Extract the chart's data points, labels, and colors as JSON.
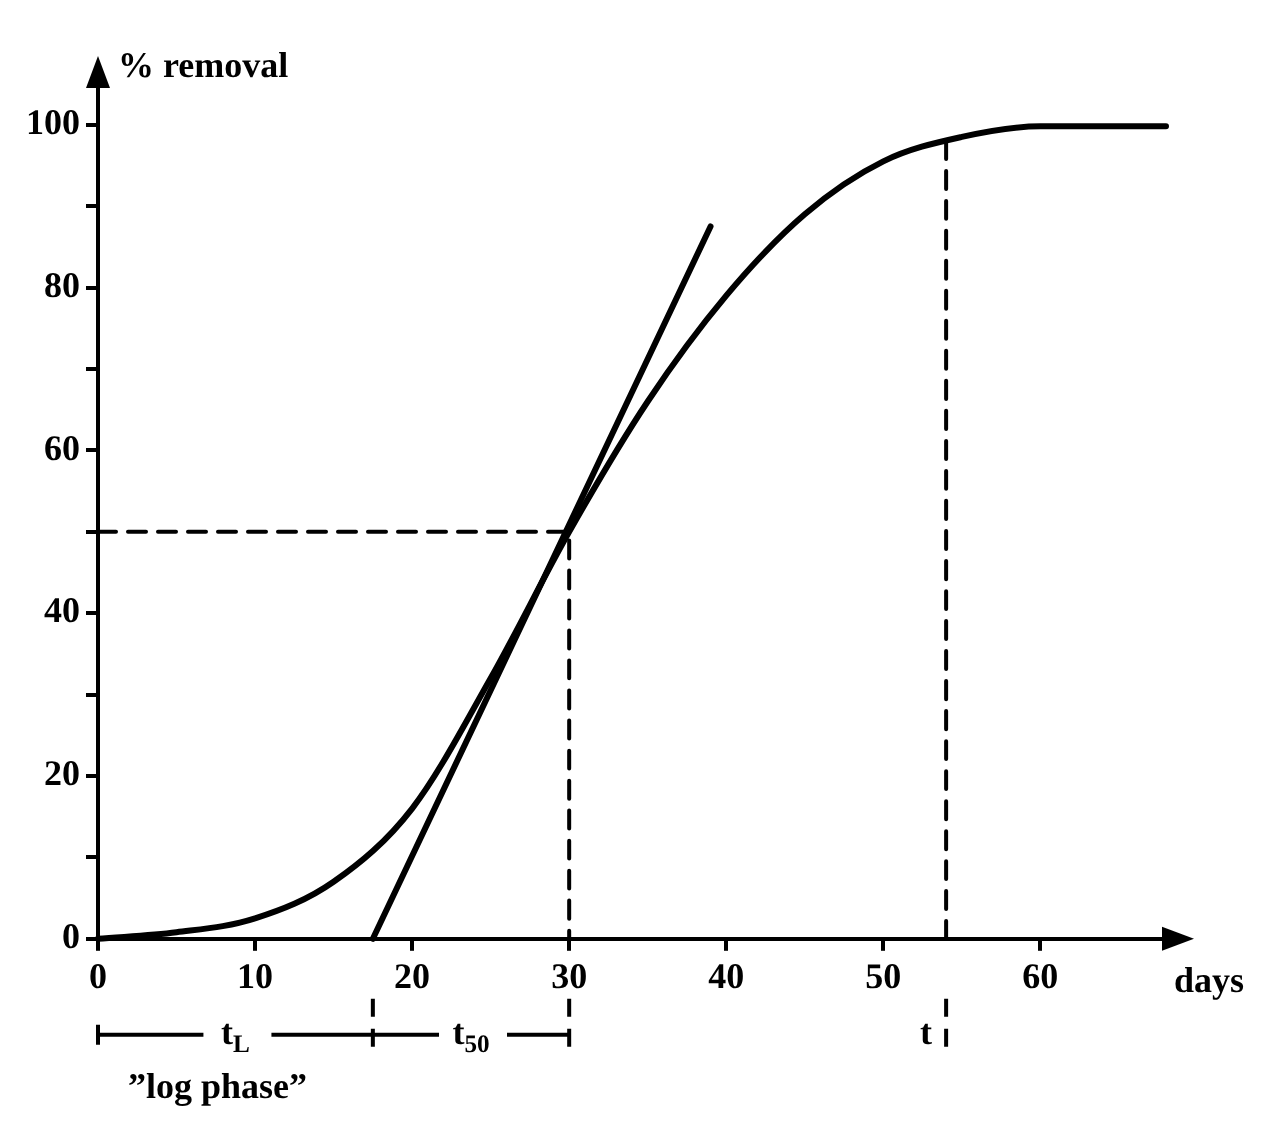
{
  "chart_data": {
    "type": "line",
    "ylabel": "% removal",
    "xlabel": "days",
    "xlim": [
      0,
      68
    ],
    "xticks": [
      0,
      10,
      20,
      30,
      40,
      50,
      60
    ],
    "ylim": [
      0,
      105
    ],
    "yticks": [
      0,
      {
        "value": 10,
        "label": null
      },
      20,
      {
        "value": 30,
        "label": null
      },
      40,
      {
        "value": 50,
        "label": null
      },
      60,
      {
        "value": 70,
        "label": null
      },
      80,
      {
        "value": 90,
        "label": null
      },
      100
    ],
    "grid": false,
    "legend": false,
    "marker": "none",
    "series": [
      {
        "color": "#000000",
        "x": [
          0,
          5,
          10,
          15,
          20,
          25,
          30,
          35,
          40,
          45,
          50,
          55,
          60,
          68
        ],
        "values": [
          0,
          0.8,
          2.5,
          7,
          16,
          32,
          50,
          66,
          79,
          89,
          95.5,
          98.5,
          99.8,
          99.8
        ]
      },
      {
        "color": "#000000",
        "x": [
          17.5,
          39
        ],
        "values": [
          0,
          87.5
        ]
      },
      {
        "color": "#000000",
        "line_style": "dashed",
        "x": [
          0,
          30,
          30
        ],
        "values": [
          50,
          50,
          0
        ]
      },
      {
        "color": "#000000",
        "line_style": "dashed",
        "x": [
          54,
          54
        ],
        "values": [
          98,
          0
        ]
      }
    ],
    "annotations": [
      "t$_{L}$",
      "t$_{50}$",
      "t",
      "”log phase”"
    ]
  }
}
